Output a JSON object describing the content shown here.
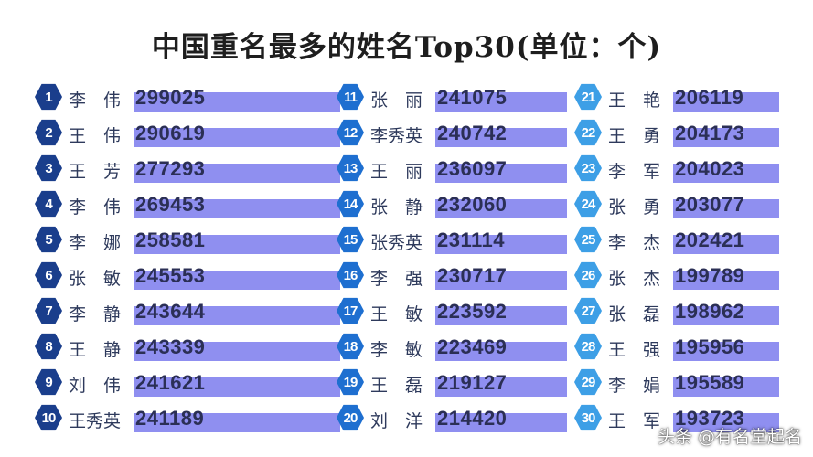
{
  "title": "中国重名最多的姓名Top30(单位：个)",
  "watermark": "头条 @有名堂起名",
  "colors": {
    "badge_dark": "#1a3e8c",
    "badge_mid": "#1e6fd0",
    "badge_light": "#3d9fe6",
    "bar": "#8f8ff0"
  },
  "chart_data": {
    "type": "bar",
    "title": "中国重名最多的姓名Top30(单位：个)",
    "unit": "个",
    "categories": [
      "李　伟",
      "王　伟",
      "王　芳",
      "李　伟",
      "李　娜",
      "张　敏",
      "李　静",
      "王　静",
      "刘　伟",
      "王秀英",
      "张　丽",
      "李秀英",
      "王　丽",
      "张　静",
      "张秀英",
      "李　强",
      "王　敏",
      "李　敏",
      "王　磊",
      "刘　洋",
      "王　艳",
      "王　勇",
      "李　军",
      "张　勇",
      "李　杰",
      "张　杰",
      "张　磊",
      "王　强",
      "李　娟",
      "王　军"
    ],
    "ranks": [
      "1",
      "2",
      "3",
      "4",
      "5",
      "6",
      "7",
      "8",
      "9",
      "10",
      "11",
      "12",
      "13",
      "14",
      "15",
      "16",
      "17",
      "18",
      "19",
      "20",
      "21",
      "22",
      "23",
      "24",
      "25",
      "26",
      "27",
      "28",
      "29",
      "30"
    ],
    "values": [
      299025,
      290619,
      277293,
      269453,
      258581,
      245553,
      243644,
      243339,
      241621,
      241189,
      241075,
      240742,
      236097,
      232060,
      231114,
      230717,
      223592,
      223469,
      219127,
      214420,
      206119,
      204173,
      204023,
      203077,
      202421,
      199789,
      198962,
      195956,
      195589,
      193723
    ],
    "labels": [
      "299025",
      "290619",
      "277293",
      "269453",
      "258581",
      "245553",
      "243644",
      "243339",
      "241621",
      "241189",
      "241075",
      "240742",
      "236097",
      "232060",
      "231114",
      "230717",
      "223592",
      "223469",
      "219127",
      "214420",
      "206119",
      "204173",
      "204023",
      "203077",
      "202421",
      "199789",
      "198962",
      "195956",
      "195589",
      "193723"
    ]
  }
}
